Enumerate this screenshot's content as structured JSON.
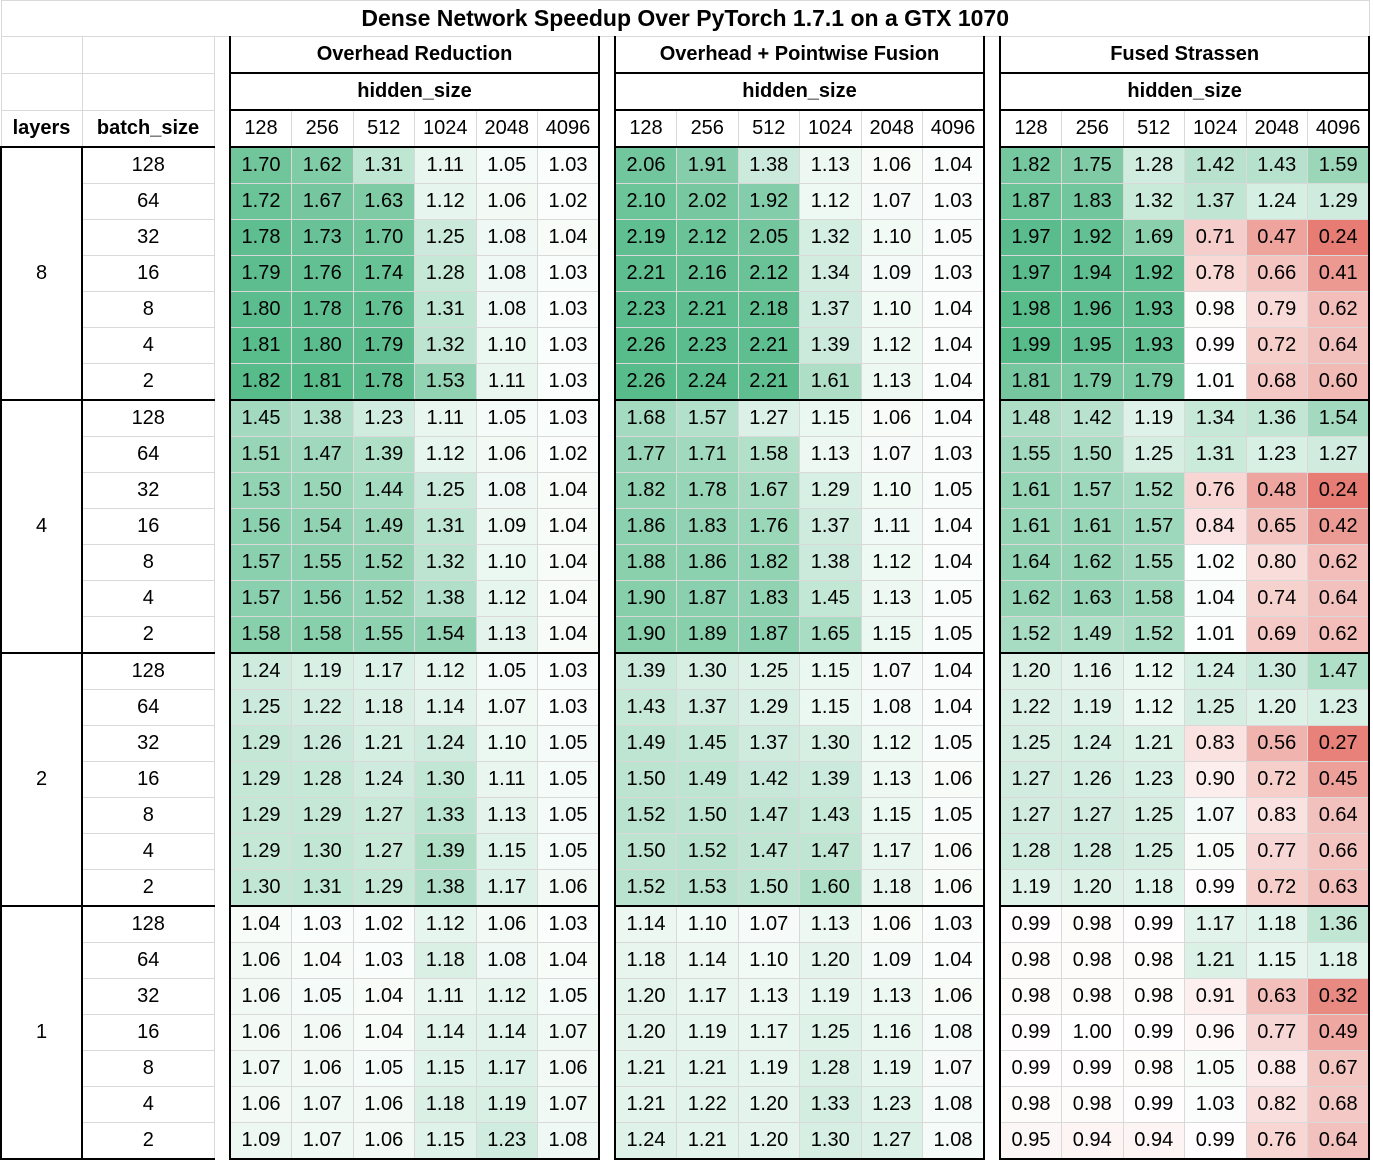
{
  "chart_data": {
    "type": "table",
    "title": "Dense Network Speedup Over PyTorch 1.7.1 on a GTX 1070",
    "row_header_labels": [
      "layers",
      "batch_size"
    ],
    "column_group_sublabel": "hidden_size",
    "hidden_sizes": [
      "128",
      "256",
      "512",
      "1024",
      "2048",
      "4096"
    ],
    "batch_sizes": [
      "128",
      "64",
      "32",
      "16",
      "8",
      "4",
      "2"
    ],
    "layers": [
      "8",
      "4",
      "2",
      "1"
    ],
    "groups": [
      {
        "name": "Overhead Reduction",
        "values": [
          [
            [
              1.7,
              1.62,
              1.31,
              1.11,
              1.05,
              1.03
            ],
            [
              1.72,
              1.67,
              1.63,
              1.12,
              1.06,
              1.02
            ],
            [
              1.78,
              1.73,
              1.7,
              1.25,
              1.08,
              1.04
            ],
            [
              1.79,
              1.76,
              1.74,
              1.28,
              1.08,
              1.03
            ],
            [
              1.8,
              1.78,
              1.76,
              1.31,
              1.08,
              1.03
            ],
            [
              1.81,
              1.8,
              1.79,
              1.32,
              1.1,
              1.03
            ],
            [
              1.82,
              1.81,
              1.78,
              1.53,
              1.11,
              1.03
            ]
          ],
          [
            [
              1.45,
              1.38,
              1.23,
              1.11,
              1.05,
              1.03
            ],
            [
              1.51,
              1.47,
              1.39,
              1.12,
              1.06,
              1.02
            ],
            [
              1.53,
              1.5,
              1.44,
              1.25,
              1.08,
              1.04
            ],
            [
              1.56,
              1.54,
              1.49,
              1.31,
              1.09,
              1.04
            ],
            [
              1.57,
              1.55,
              1.52,
              1.32,
              1.1,
              1.04
            ],
            [
              1.57,
              1.56,
              1.52,
              1.38,
              1.12,
              1.04
            ],
            [
              1.58,
              1.58,
              1.55,
              1.54,
              1.13,
              1.04
            ]
          ],
          [
            [
              1.24,
              1.19,
              1.17,
              1.12,
              1.05,
              1.03
            ],
            [
              1.25,
              1.22,
              1.18,
              1.14,
              1.07,
              1.03
            ],
            [
              1.29,
              1.26,
              1.21,
              1.24,
              1.1,
              1.05
            ],
            [
              1.29,
              1.28,
              1.24,
              1.3,
              1.11,
              1.05
            ],
            [
              1.29,
              1.29,
              1.27,
              1.33,
              1.13,
              1.05
            ],
            [
              1.29,
              1.3,
              1.27,
              1.39,
              1.15,
              1.05
            ],
            [
              1.3,
              1.31,
              1.29,
              1.38,
              1.17,
              1.06
            ]
          ],
          [
            [
              1.04,
              1.03,
              1.02,
              1.12,
              1.06,
              1.03
            ],
            [
              1.06,
              1.04,
              1.03,
              1.18,
              1.08,
              1.04
            ],
            [
              1.06,
              1.05,
              1.04,
              1.11,
              1.12,
              1.05
            ],
            [
              1.06,
              1.06,
              1.04,
              1.14,
              1.14,
              1.07
            ],
            [
              1.07,
              1.06,
              1.05,
              1.15,
              1.17,
              1.06
            ],
            [
              1.06,
              1.07,
              1.06,
              1.18,
              1.19,
              1.07
            ],
            [
              1.09,
              1.07,
              1.06,
              1.15,
              1.23,
              1.08
            ]
          ]
        ]
      },
      {
        "name": "Overhead + Pointwise Fusion",
        "values": [
          [
            [
              2.06,
              1.91,
              1.38,
              1.13,
              1.06,
              1.04
            ],
            [
              2.1,
              2.02,
              1.92,
              1.12,
              1.07,
              1.03
            ],
            [
              2.19,
              2.12,
              2.05,
              1.32,
              1.1,
              1.05
            ],
            [
              2.21,
              2.16,
              2.12,
              1.34,
              1.09,
              1.03
            ],
            [
              2.23,
              2.21,
              2.18,
              1.37,
              1.1,
              1.04
            ],
            [
              2.26,
              2.23,
              2.21,
              1.39,
              1.12,
              1.04
            ],
            [
              2.26,
              2.24,
              2.21,
              1.61,
              1.13,
              1.04
            ]
          ],
          [
            [
              1.68,
              1.57,
              1.27,
              1.15,
              1.06,
              1.04
            ],
            [
              1.77,
              1.71,
              1.58,
              1.13,
              1.07,
              1.03
            ],
            [
              1.82,
              1.78,
              1.67,
              1.29,
              1.1,
              1.05
            ],
            [
              1.86,
              1.83,
              1.76,
              1.37,
              1.11,
              1.04
            ],
            [
              1.88,
              1.86,
              1.82,
              1.38,
              1.12,
              1.04
            ],
            [
              1.9,
              1.87,
              1.83,
              1.45,
              1.13,
              1.05
            ],
            [
              1.9,
              1.89,
              1.87,
              1.65,
              1.15,
              1.05
            ]
          ],
          [
            [
              1.39,
              1.3,
              1.25,
              1.15,
              1.07,
              1.04
            ],
            [
              1.43,
              1.37,
              1.29,
              1.15,
              1.08,
              1.04
            ],
            [
              1.49,
              1.45,
              1.37,
              1.3,
              1.12,
              1.05
            ],
            [
              1.5,
              1.49,
              1.42,
              1.39,
              1.13,
              1.06
            ],
            [
              1.52,
              1.5,
              1.47,
              1.43,
              1.15,
              1.05
            ],
            [
              1.5,
              1.52,
              1.47,
              1.47,
              1.17,
              1.06
            ],
            [
              1.52,
              1.53,
              1.5,
              1.6,
              1.18,
              1.06
            ]
          ],
          [
            [
              1.14,
              1.1,
              1.07,
              1.13,
              1.06,
              1.03
            ],
            [
              1.18,
              1.14,
              1.1,
              1.2,
              1.09,
              1.04
            ],
            [
              1.2,
              1.17,
              1.13,
              1.19,
              1.13,
              1.06
            ],
            [
              1.2,
              1.19,
              1.17,
              1.25,
              1.16,
              1.08
            ],
            [
              1.21,
              1.21,
              1.19,
              1.28,
              1.19,
              1.07
            ],
            [
              1.21,
              1.22,
              1.2,
              1.33,
              1.23,
              1.08
            ],
            [
              1.24,
              1.21,
              1.2,
              1.3,
              1.27,
              1.08
            ]
          ]
        ]
      },
      {
        "name": "Fused Strassen",
        "values": [
          [
            [
              1.82,
              1.75,
              1.28,
              1.42,
              1.43,
              1.59
            ],
            [
              1.87,
              1.83,
              1.32,
              1.37,
              1.24,
              1.29
            ],
            [
              1.97,
              1.92,
              1.69,
              0.71,
              0.47,
              0.24
            ],
            [
              1.97,
              1.94,
              1.92,
              0.78,
              0.66,
              0.41
            ],
            [
              1.98,
              1.96,
              1.93,
              0.98,
              0.79,
              0.62
            ],
            [
              1.99,
              1.95,
              1.93,
              0.99,
              0.72,
              0.64
            ],
            [
              1.81,
              1.79,
              1.79,
              1.01,
              0.68,
              0.6
            ]
          ],
          [
            [
              1.48,
              1.42,
              1.19,
              1.34,
              1.36,
              1.54
            ],
            [
              1.55,
              1.5,
              1.25,
              1.31,
              1.23,
              1.27
            ],
            [
              1.61,
              1.57,
              1.52,
              0.76,
              0.48,
              0.24
            ],
            [
              1.61,
              1.61,
              1.57,
              0.84,
              0.65,
              0.42
            ],
            [
              1.64,
              1.62,
              1.55,
              1.02,
              0.8,
              0.62
            ],
            [
              1.62,
              1.63,
              1.58,
              1.04,
              0.74,
              0.64
            ],
            [
              1.52,
              1.49,
              1.52,
              1.01,
              0.69,
              0.62
            ]
          ],
          [
            [
              1.2,
              1.16,
              1.12,
              1.24,
              1.3,
              1.47
            ],
            [
              1.22,
              1.19,
              1.12,
              1.25,
              1.2,
              1.23
            ],
            [
              1.25,
              1.24,
              1.21,
              0.83,
              0.56,
              0.27
            ],
            [
              1.27,
              1.26,
              1.23,
              0.9,
              0.72,
              0.45
            ],
            [
              1.27,
              1.27,
              1.25,
              1.07,
              0.83,
              0.64
            ],
            [
              1.28,
              1.28,
              1.25,
              1.05,
              0.77,
              0.66
            ],
            [
              1.19,
              1.2,
              1.18,
              0.99,
              0.72,
              0.63
            ]
          ],
          [
            [
              0.99,
              0.98,
              0.99,
              1.17,
              1.18,
              1.36
            ],
            [
              0.98,
              0.98,
              0.98,
              1.21,
              1.15,
              1.18
            ],
            [
              0.98,
              0.98,
              0.98,
              0.91,
              0.63,
              0.32
            ],
            [
              0.99,
              1.0,
              0.99,
              0.96,
              0.77,
              0.49
            ],
            [
              0.99,
              0.99,
              0.98,
              1.05,
              0.88,
              0.67
            ],
            [
              0.98,
              0.98,
              0.99,
              1.03,
              0.82,
              0.68
            ],
            [
              0.95,
              0.94,
              0.94,
              0.99,
              0.76,
              0.64
            ]
          ]
        ]
      }
    ]
  },
  "colors": {
    "good": "#57bb8a",
    "neutral": "#ffffff",
    "bad": "#e67c73",
    "grid": "#d9d9d9",
    "border": "#000000"
  }
}
